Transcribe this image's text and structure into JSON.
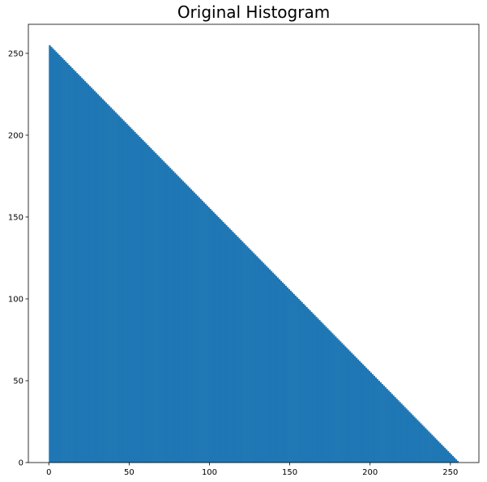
{
  "chart_data": {
    "type": "bar",
    "title": "Original Histogram",
    "xlabel": "",
    "ylabel": "",
    "x": "integers 0 through 255 (one bar per value)",
    "value_rule": "value = 255 - x",
    "series": [
      {
        "color": "#1f77b4",
        "first_x": 0,
        "last_x": 255,
        "first_value": 255,
        "last_value": 0
      }
    ],
    "xlim": [
      -12.75,
      267.75
    ],
    "ylim": [
      0,
      267.75
    ],
    "xticks": [
      0,
      50,
      100,
      150,
      200,
      250
    ],
    "yticks": [
      0,
      50,
      100,
      150,
      200,
      250
    ],
    "xtick_labels": [
      "0",
      "50",
      "100",
      "150",
      "200",
      "250"
    ],
    "ytick_labels": [
      "0",
      "50",
      "100",
      "150",
      "200",
      "250"
    ],
    "grid": false,
    "legend": "none"
  }
}
